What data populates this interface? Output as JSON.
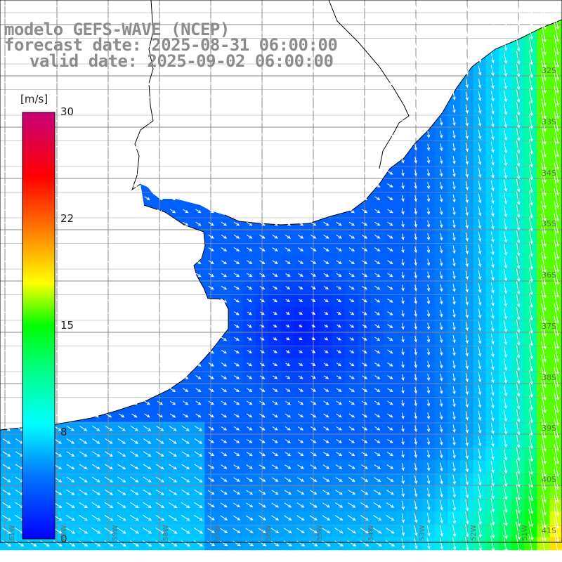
{
  "title": {
    "line1": "modelo GEFS-WAVE (NCEP)",
    "line2": "forecast date: 2025-08-31 06:00:00",
    "line3": "valid date: 2025-09-02 06:00:00"
  },
  "colorbar": {
    "unit": "[m/s]",
    "ticks": [
      "30",
      "22",
      "15",
      "8",
      "0"
    ],
    "tick_values": [
      30,
      22,
      15,
      8,
      0
    ],
    "range": [
      0,
      30
    ],
    "colors": [
      "#0000ff",
      "#00c8ff",
      "#00ffff",
      "#00ff00",
      "#ffff00",
      "#ff8000",
      "#ff0000",
      "#cc0077"
    ]
  },
  "map": {
    "variable": "wind speed and direction",
    "lat_labels": [
      "32S",
      "33S",
      "34S",
      "35S",
      "36S",
      "37S",
      "38S",
      "39S",
      "40S",
      "41S"
    ],
    "lon_labels": [
      "61W",
      "60W",
      "59W",
      "58W",
      "57W",
      "56W",
      "55W",
      "54W",
      "53W",
      "52W",
      "51W"
    ],
    "extent": {
      "lon_min": -61.2,
      "lon_max": -50.4,
      "lat_min": -41.3,
      "lat_max": -30.7
    },
    "grid": true,
    "land_color": "#ffffff",
    "coast_color": "#000000",
    "grid_color": "#888888",
    "arrow_color": "#ffffff"
  }
}
